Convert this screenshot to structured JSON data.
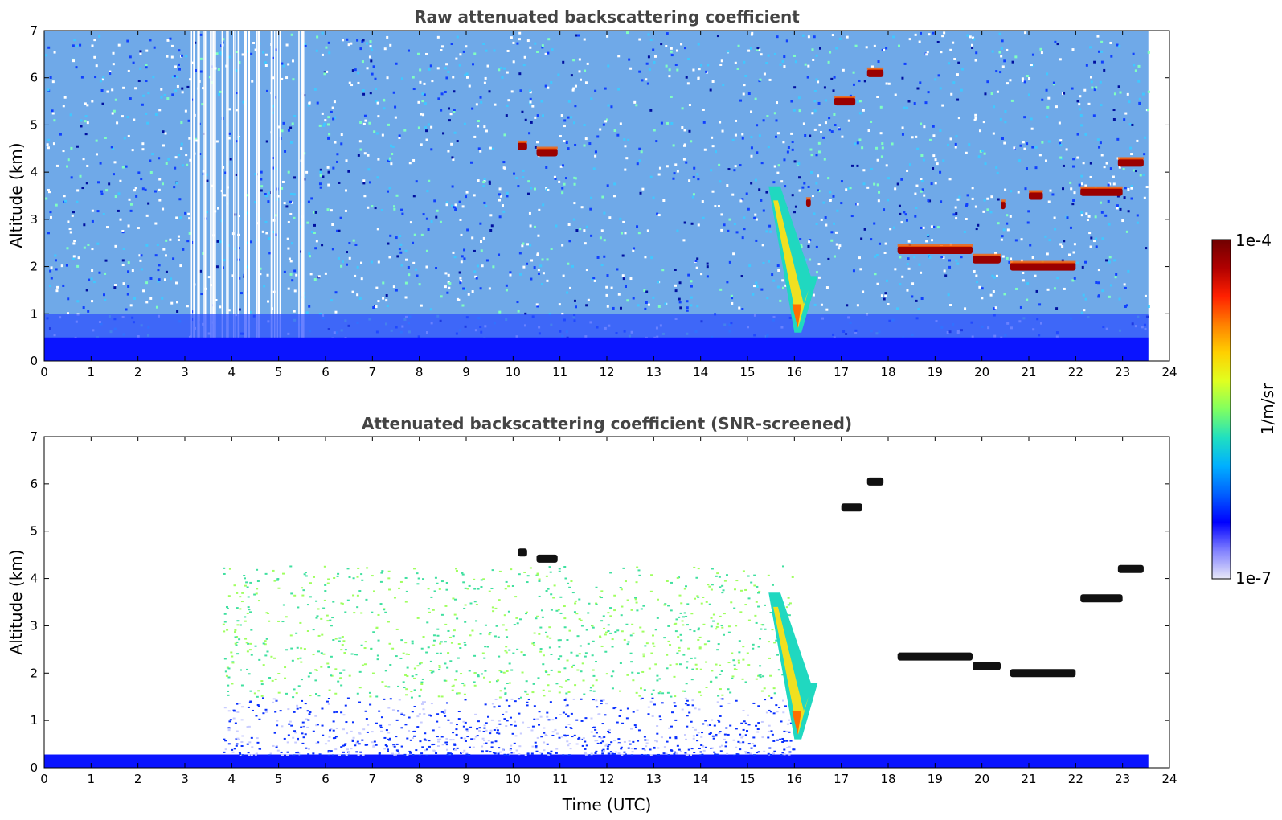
{
  "chart_data": [
    {
      "type": "heatmap",
      "title": "Raw attenuated backscattering coefficient",
      "xlabel": "",
      "ylabel": "Altitude (km)",
      "xlim": [
        0,
        24
      ],
      "ylim": [
        0,
        7
      ],
      "x_ticks": [
        "0",
        "1",
        "2",
        "3",
        "4",
        "5",
        "6",
        "7",
        "8",
        "9",
        "10",
        "11",
        "12",
        "13",
        "14",
        "15",
        "16",
        "17",
        "18",
        "19",
        "20",
        "21",
        "22",
        "23",
        "24"
      ],
      "y_ticks": [
        "0",
        "1",
        "2",
        "3",
        "4",
        "5",
        "6",
        "7"
      ],
      "data_end_time": 23.55,
      "features": [
        {
          "kind": "boundary_layer",
          "t0": 0,
          "t1": 23.55,
          "alt_top": 0.5
        },
        {
          "kind": "cloud",
          "t0": 10.1,
          "t1": 10.3,
          "alt": 4.55
        },
        {
          "kind": "cloud",
          "t0": 10.5,
          "t1": 10.95,
          "alt": 4.42
        },
        {
          "kind": "cloud",
          "t0": 16.85,
          "t1": 17.3,
          "alt": 5.5
        },
        {
          "kind": "cloud",
          "t0": 17.55,
          "t1": 17.9,
          "alt": 6.1
        },
        {
          "kind": "cloud",
          "t0": 18.2,
          "t1": 19.8,
          "alt": 2.35
        },
        {
          "kind": "cloud",
          "t0": 19.8,
          "t1": 20.4,
          "alt": 2.15
        },
        {
          "kind": "cloud",
          "t0": 20.6,
          "t1": 22.0,
          "alt": 2.0
        },
        {
          "kind": "cloud",
          "t0": 20.4,
          "t1": 20.5,
          "alt": 3.3
        },
        {
          "kind": "cloud",
          "t0": 21.0,
          "t1": 21.3,
          "alt": 3.5
        },
        {
          "kind": "cloud",
          "t0": 22.1,
          "t1": 23.0,
          "alt": 3.58
        },
        {
          "kind": "cloud",
          "t0": 22.9,
          "t1": 23.45,
          "alt": 4.2
        },
        {
          "kind": "cloud",
          "t0": 16.25,
          "t1": 16.35,
          "alt": 3.35
        },
        {
          "kind": "plume",
          "t0": 15.45,
          "t1": 16.5,
          "alt_top": 3.7,
          "alt_bottom": 0.6
        }
      ]
    },
    {
      "type": "heatmap",
      "title": "Attenuated backscattering coefficient (SNR-screened)",
      "xlabel": "Time (UTC)",
      "ylabel": "Altitude (km)",
      "xlim": [
        0,
        24
      ],
      "ylim": [
        0,
        7
      ],
      "x_ticks": [
        "0",
        "1",
        "2",
        "3",
        "4",
        "5",
        "6",
        "7",
        "8",
        "9",
        "10",
        "11",
        "12",
        "13",
        "14",
        "15",
        "16",
        "17",
        "18",
        "19",
        "20",
        "21",
        "22",
        "23",
        "24"
      ],
      "y_ticks": [
        "0",
        "1",
        "2",
        "3",
        "4",
        "5",
        "6",
        "7"
      ],
      "data_end_time": 23.55,
      "features": [
        {
          "kind": "boundary_layer",
          "t0": 0,
          "t1": 23.55,
          "alt_top": 0.28
        },
        {
          "kind": "aerosol",
          "t0": 3.8,
          "t1": 16.0,
          "alt_top": 1.5
        },
        {
          "kind": "cloud",
          "t0": 10.1,
          "t1": 10.3,
          "alt": 4.55
        },
        {
          "kind": "cloud",
          "t0": 10.5,
          "t1": 10.95,
          "alt": 4.42
        },
        {
          "kind": "cloud",
          "t0": 17.0,
          "t1": 17.45,
          "alt": 5.5
        },
        {
          "kind": "cloud",
          "t0": 17.55,
          "t1": 17.9,
          "alt": 6.05
        },
        {
          "kind": "cloud",
          "t0": 18.2,
          "t1": 19.8,
          "alt": 2.35
        },
        {
          "kind": "cloud",
          "t0": 19.8,
          "t1": 20.4,
          "alt": 2.15
        },
        {
          "kind": "cloud",
          "t0": 20.6,
          "t1": 22.0,
          "alt": 2.0
        },
        {
          "kind": "cloud",
          "t0": 22.1,
          "t1": 23.0,
          "alt": 3.58
        },
        {
          "kind": "cloud",
          "t0": 22.9,
          "t1": 23.45,
          "alt": 4.2
        },
        {
          "kind": "plume",
          "t0": 15.45,
          "t1": 16.5,
          "alt_top": 3.7,
          "alt_bottom": 0.6
        }
      ]
    }
  ],
  "colorbar": {
    "label": "1/m/sr",
    "max_label": "1e-4",
    "min_label": "1e-7",
    "colors": [
      "#e8e8f8",
      "#8080ff",
      "#0000ff",
      "#0060ff",
      "#00b0ff",
      "#20e0c0",
      "#80ff60",
      "#e0ff20",
      "#ffd000",
      "#ff8000",
      "#ff2000",
      "#b00000",
      "#700000"
    ]
  }
}
